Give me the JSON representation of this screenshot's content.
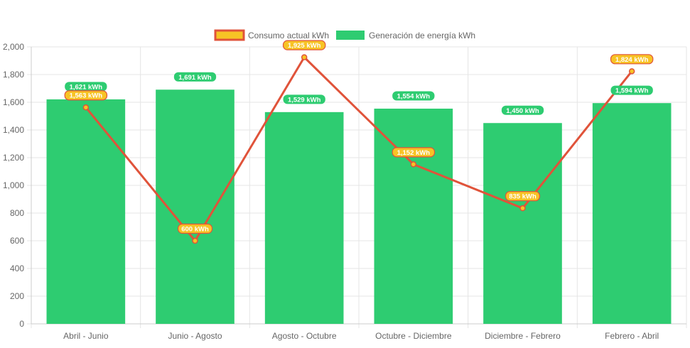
{
  "chart_data": {
    "type": "bar",
    "categories": [
      "Abril - Junio",
      "Junio - Agosto",
      "Agosto - Octubre",
      "Octubre - Diciembre",
      "Diciembre - Febrero",
      "Febrero - Abril"
    ],
    "series": [
      {
        "name": "Consumo actual kWh",
        "type": "line",
        "values": [
          1563,
          600,
          1925,
          1152,
          835,
          1824
        ],
        "labels": [
          "1,563 kWh",
          "600 kWh",
          "1,925 kWh",
          "1,152 kWh",
          "835 kWh",
          "1,824 kWh"
        ],
        "color": "#e0533a",
        "fill": "#f7c325"
      },
      {
        "name": "Generación de energía kWh",
        "type": "bar",
        "values": [
          1621,
          1691,
          1529,
          1554,
          1450,
          1594
        ],
        "labels": [
          "1,621 kWh",
          "1,691 kWh",
          "1,529 kWh",
          "1,554 kWh",
          "1,450 kWh",
          "1,594 kWh"
        ],
        "color": "#2ecc71"
      }
    ],
    "ylim": [
      0,
      2000
    ],
    "yticks": [
      0,
      200,
      400,
      600,
      800,
      1000,
      1200,
      1400,
      1600,
      1800,
      2000
    ],
    "ytick_labels": [
      "0",
      "200",
      "400",
      "600",
      "800",
      "1,000",
      "1,200",
      "1,400",
      "1,600",
      "1,800",
      "2,000"
    ],
    "grid": true,
    "legend_position": "top-center"
  }
}
